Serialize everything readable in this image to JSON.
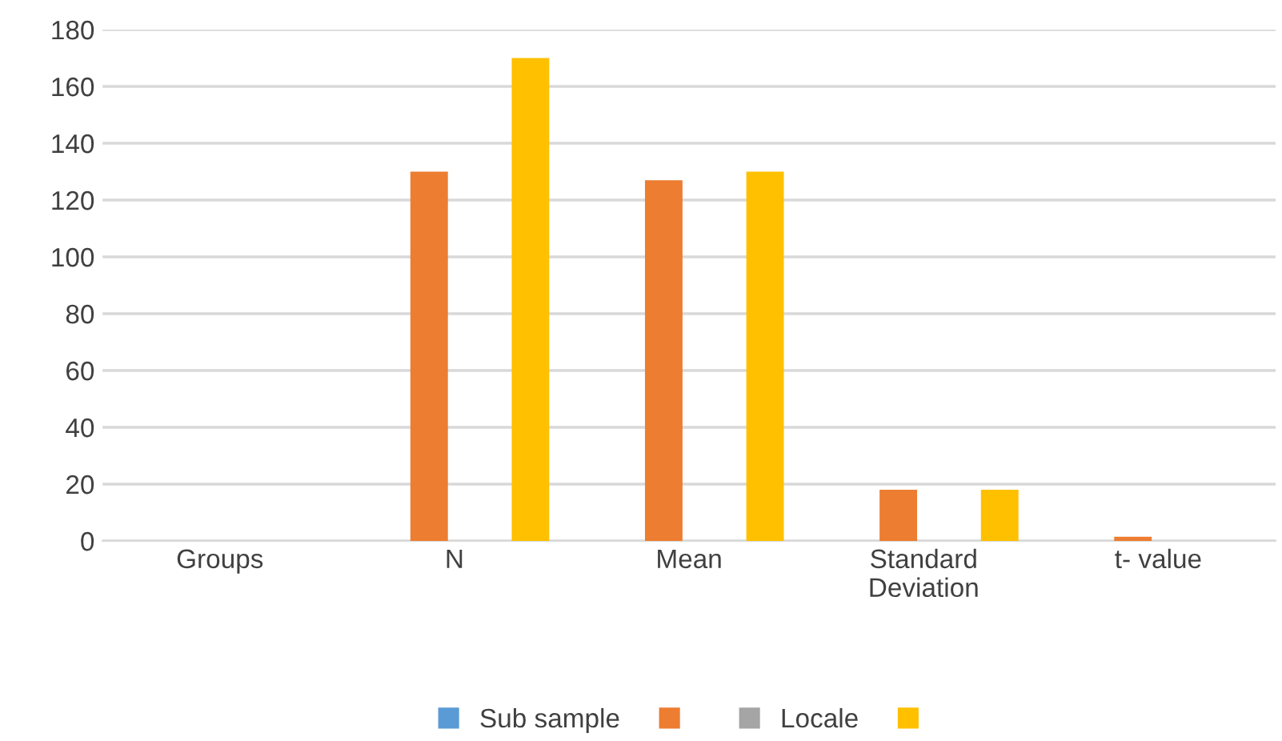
{
  "chart_data": {
    "type": "bar",
    "categories": [
      "Groups",
      "N",
      "Mean",
      "Standard\nDeviation",
      "t- value"
    ],
    "series": [
      {
        "name": "Sub sample",
        "color": "#5b9bd5",
        "values": [
          null,
          null,
          null,
          null,
          null
        ]
      },
      {
        "color": "#ed7d31",
        "values": [
          null,
          130,
          127,
          18,
          1.5
        ]
      },
      {
        "name": "Locale",
        "color": "#a5a5a5",
        "values": [
          null,
          null,
          null,
          null,
          null
        ]
      },
      {
        "color": "#ffc000",
        "values": [
          null,
          170,
          130,
          18,
          null
        ]
      }
    ],
    "ylim": [
      0,
      180
    ],
    "yticks": [
      0,
      20,
      40,
      60,
      80,
      100,
      120,
      140,
      160,
      180
    ],
    "grid": "y",
    "legend": "bottom"
  }
}
